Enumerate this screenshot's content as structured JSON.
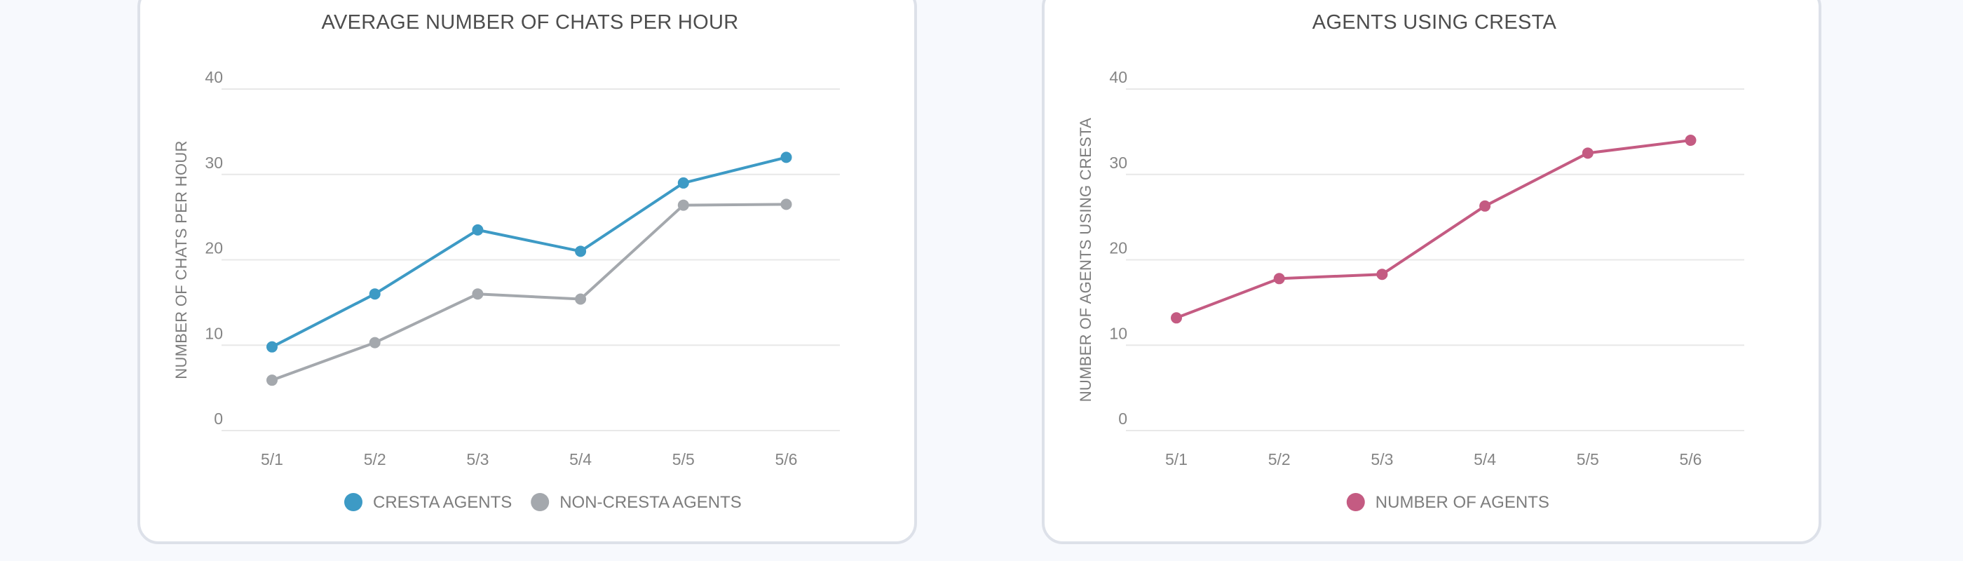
{
  "colors": {
    "cresta": "#3d9ac5",
    "non_cresta": "#a4a8ad",
    "agents": "#c45b82"
  },
  "chart_data": [
    {
      "type": "line",
      "title": "AVERAGE NUMBER OF CHATS PER HOUR",
      "xlabel": "",
      "ylabel": "NUMBER OF CHATS PER HOUR",
      "categories": [
        "5/1",
        "5/2",
        "5/3",
        "5/4",
        "5/5",
        "5/6"
      ],
      "ylim": [
        0,
        40
      ],
      "yticks": [
        0,
        10,
        20,
        30,
        40
      ],
      "grid": true,
      "legend_position": "bottom",
      "series": [
        {
          "name": "CRESTA AGENTS",
          "color": "#3d9ac5",
          "values": [
            9.8,
            16,
            23.5,
            21,
            29,
            32
          ]
        },
        {
          "name": "NON-CRESTA AGENTS",
          "color": "#a4a8ad",
          "values": [
            5.9,
            10.3,
            16,
            15.4,
            26.4,
            26.5
          ]
        }
      ]
    },
    {
      "type": "line",
      "title": "AGENTS USING CRESTA",
      "xlabel": "",
      "ylabel": "NUMBER OF AGENTS USING CRESTA",
      "categories": [
        "5/1",
        "5/2",
        "5/3",
        "5/4",
        "5/5",
        "5/6"
      ],
      "ylim": [
        0,
        40
      ],
      "yticks": [
        0,
        10,
        20,
        30,
        40
      ],
      "grid": true,
      "legend_position": "bottom",
      "series": [
        {
          "name": "NUMBER OF AGENTS",
          "color": "#c45b82",
          "values": [
            13.2,
            17.8,
            18.3,
            26.3,
            32.5,
            34
          ]
        }
      ]
    }
  ]
}
